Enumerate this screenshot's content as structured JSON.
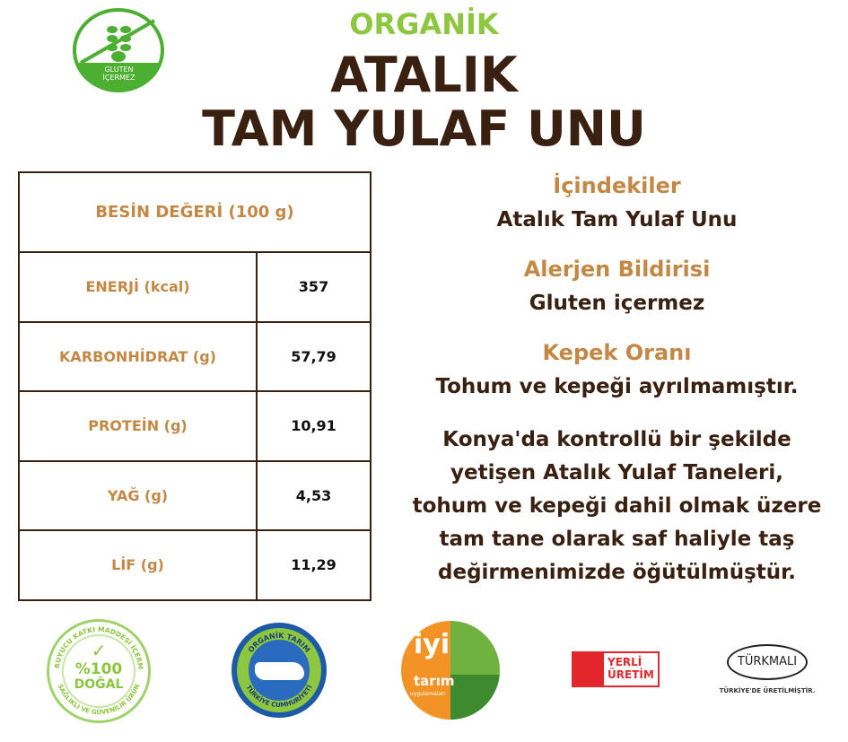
{
  "header": {
    "organik": "ORGANİK",
    "title_line1": "ATALIK",
    "title_line2": "TAM YULAF UNU"
  },
  "gluten_badge": {
    "text_line1": "GLUTEN",
    "text_line2": "İÇERMEZ"
  },
  "nutrition": {
    "header": "BESİN DEĞERİ (100 g)",
    "rows": [
      {
        "label": "ENERJİ (kcal)",
        "value": "357"
      },
      {
        "label": "KARBONHİDRAT (g)",
        "value": "57,79"
      },
      {
        "label": "PROTEİN (g)",
        "value": "10,91"
      },
      {
        "label": "YAĞ (g)",
        "value": "4,53"
      },
      {
        "label": "LİF (g)",
        "value": "11,29"
      }
    ]
  },
  "info": {
    "ingredients_heading": "İçindekiler",
    "ingredients": "Atalık Tam Yulaf Unu",
    "allergen_heading": "Alerjen Bildirisi",
    "allergen": "Gluten içermez",
    "bran_heading": "Kepek Oranı",
    "bran": "Tohum ve kepeği ayrılmamıştır.",
    "description": [
      "Konya'da kontrollü bir şekilde",
      "yetişen Atalık Yulaf Taneleri,",
      "tohum ve kepeği dahil olmak üzere",
      "tam tane olarak saf haliyle taş",
      "değirmenimizde öğütülmüştür."
    ]
  },
  "badges": {
    "dogal": {
      "main": "%100",
      "sub": "DOĞAL",
      "ring_top": "KORUYUCU KATKI MADDESİ İÇERMEZ",
      "ring_bottom": "SAĞLIKLI VE GÜVENİLİR ÜRÜN"
    },
    "organik_tarim": {
      "ring_top": "ORGANİK TARIM",
      "ring_bottom": "TÜRKİYE CUMHURİYETİ"
    },
    "iyi_tarim": {
      "main": "iyi",
      "sub": "tarım",
      "small": "uygulamaları"
    },
    "yerli": {
      "line1": "YERLİ",
      "line2": "ÜRETİM"
    },
    "turkmali": {
      "logo": "TÜRKMALI",
      "caption": "TÜRKİYE'DE ÜRETİLMİŞTİR."
    }
  },
  "colors": {
    "brown": "#3a2010",
    "tan": "#c48845",
    "green": "#8dc63f"
  }
}
